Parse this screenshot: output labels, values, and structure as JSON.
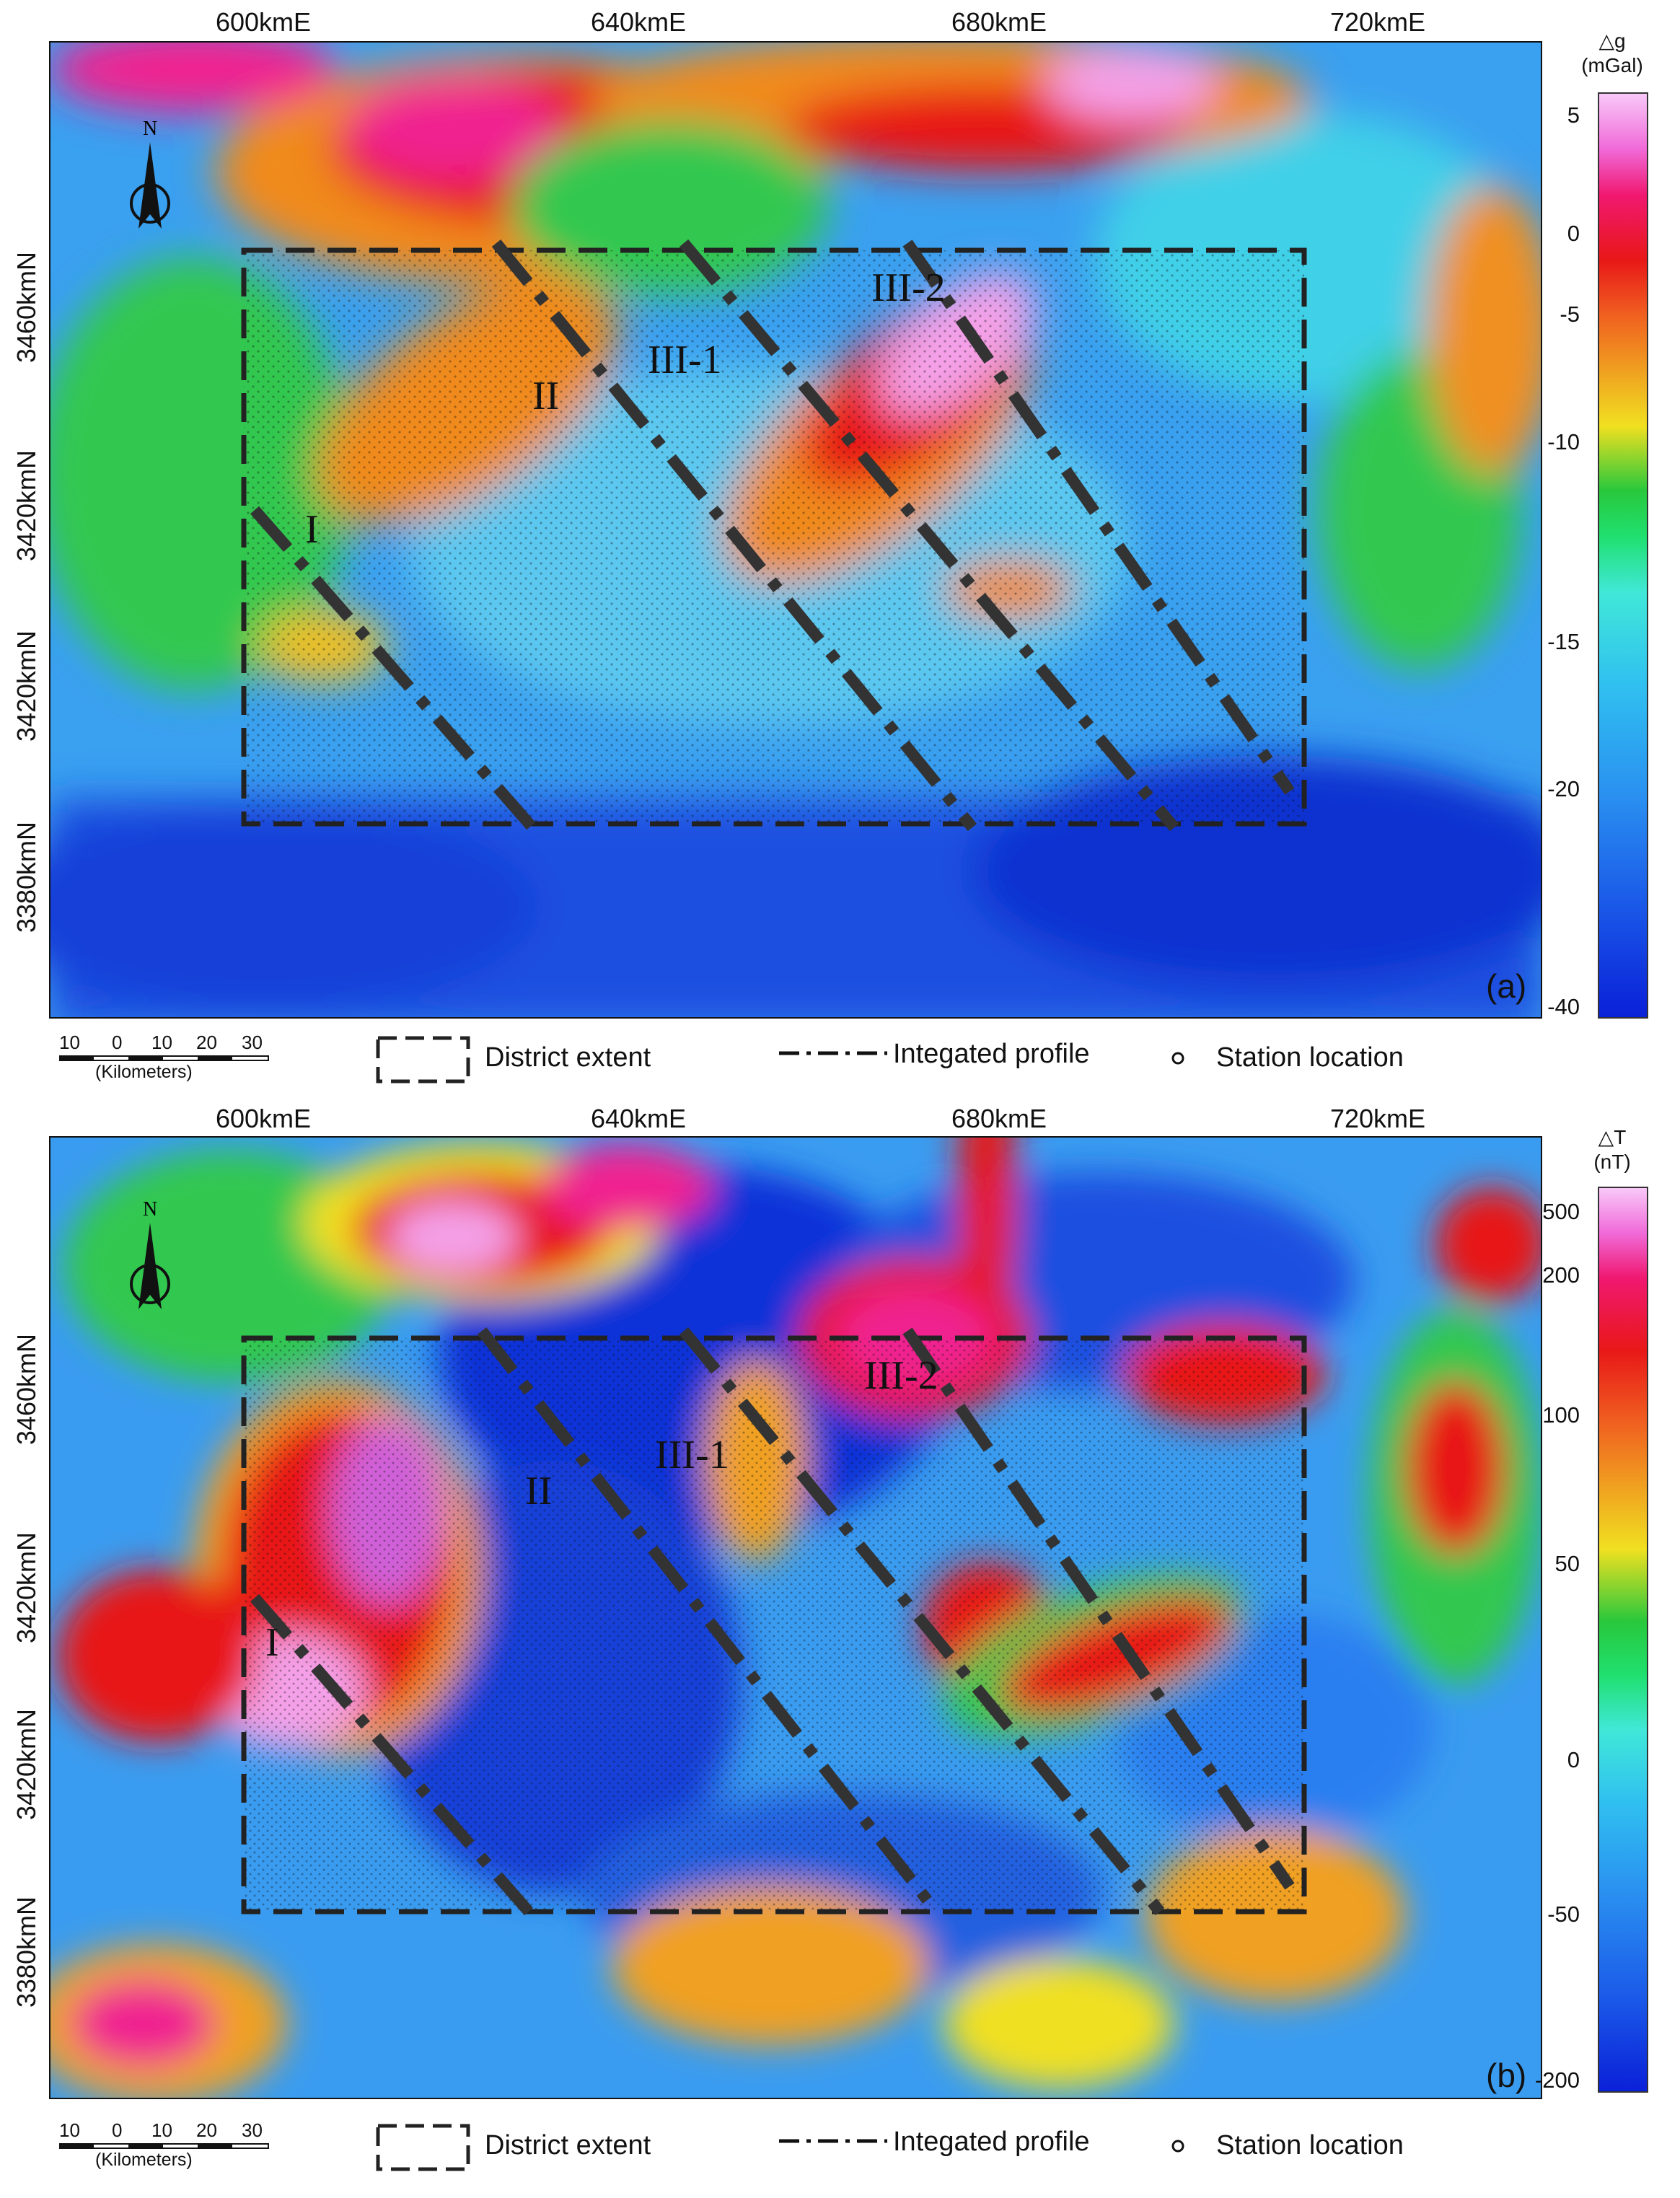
{
  "panels": [
    {
      "id": "a",
      "panel_label": "(a)",
      "x_ticks": [
        "600kmE",
        "640kmE",
        "680kmE",
        "720kmE"
      ],
      "y_ticks": [
        "3460kmN",
        "3420kmN",
        "3420kmN",
        "3380kmN"
      ],
      "colorbar": {
        "quantity": "△g",
        "unit": "(mGal)",
        "ticks": [
          "5",
          "0",
          "-5",
          "-10",
          "-15",
          "-20",
          "-40"
        ]
      },
      "regions": [
        "I",
        "II",
        "III-1",
        "III-2"
      ],
      "legend": {
        "scale_numbers": [
          "10",
          "0",
          "10",
          "20",
          "30"
        ],
        "scale_unit": "(Kilometers)",
        "district": "District extent",
        "profile": "Integated profile",
        "station": "Station location"
      }
    },
    {
      "id": "b",
      "panel_label": "(b)",
      "x_ticks": [
        "600kmE",
        "640kmE",
        "680kmE",
        "720kmE"
      ],
      "y_ticks": [
        "3460kmN",
        "3420kmN",
        "3420kmN",
        "3380kmN"
      ],
      "colorbar": {
        "quantity": "△T",
        "unit": "(nT)",
        "ticks": [
          "500",
          "200",
          "100",
          "50",
          "0",
          "-50",
          "-200"
        ]
      },
      "regions": [
        "I",
        "II",
        "III-1",
        "III-2"
      ],
      "legend": {
        "scale_numbers": [
          "10",
          "0",
          "10",
          "20",
          "30"
        ],
        "scale_unit": "(Kilometers)",
        "district": "District extent",
        "profile": "Integated profile",
        "station": "Station location"
      }
    }
  ],
  "north_arrow_letter": "N",
  "colors": {
    "deep_blue": "#1030d8",
    "blue": "#2a7ff0",
    "cyan": "#40d8e8",
    "green": "#22c83c",
    "yellow": "#f0e020",
    "orange": "#f08a1c",
    "red": "#e81818",
    "magenta": "#f02090",
    "pink": "#f4a0e8"
  }
}
